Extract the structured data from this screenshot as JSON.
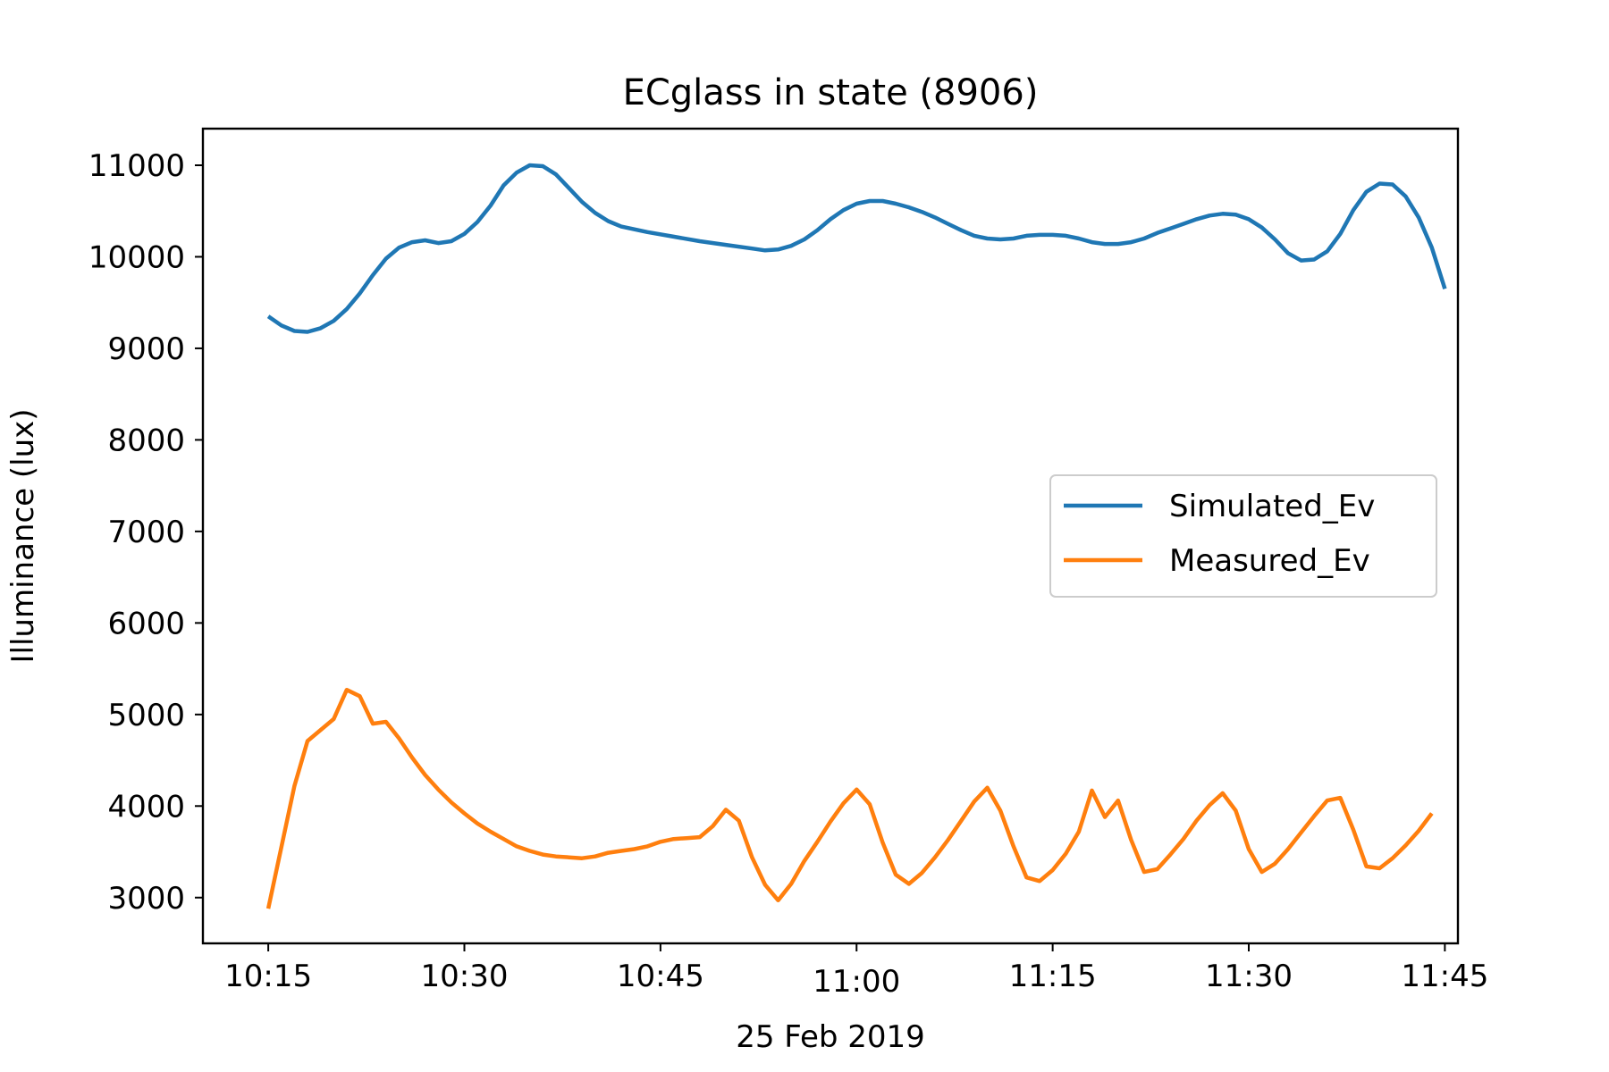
{
  "chart_data": {
    "type": "line",
    "title": "ECglass in state (8906)",
    "xlabel": "25 Feb 2019",
    "ylabel": "Illuminance (lux)",
    "x_ticks": [
      "10:15",
      "10:30",
      "10:45",
      "11:00",
      "11:15",
      "11:30",
      "11:45"
    ],
    "y_ticks": [
      "3000",
      "4000",
      "5000",
      "6000",
      "7000",
      "8000",
      "9000",
      "10000",
      "11000"
    ],
    "ylim": [
      2500,
      11400
    ],
    "xlim": [
      "10:10",
      "11:46"
    ],
    "grid": false,
    "legend_position": "center-right",
    "series": [
      {
        "name": "Simulated_Ev",
        "color": "#1f77b4",
        "points": [
          [
            "10:15",
            9350
          ],
          [
            "10:16",
            9250
          ],
          [
            "10:17",
            9190
          ],
          [
            "10:18",
            9180
          ],
          [
            "10:19",
            9220
          ],
          [
            "10:20",
            9300
          ],
          [
            "10:21",
            9430
          ],
          [
            "10:22",
            9600
          ],
          [
            "10:23",
            9800
          ],
          [
            "10:24",
            9980
          ],
          [
            "10:25",
            10100
          ],
          [
            "10:26",
            10160
          ],
          [
            "10:27",
            10180
          ],
          [
            "10:28",
            10150
          ],
          [
            "10:29",
            10170
          ],
          [
            "10:30",
            10250
          ],
          [
            "10:31",
            10380
          ],
          [
            "10:32",
            10560
          ],
          [
            "10:33",
            10780
          ],
          [
            "10:34",
            10920
          ],
          [
            "10:35",
            11000
          ],
          [
            "10:36",
            10990
          ],
          [
            "10:37",
            10900
          ],
          [
            "10:38",
            10750
          ],
          [
            "10:39",
            10600
          ],
          [
            "10:40",
            10480
          ],
          [
            "10:41",
            10390
          ],
          [
            "10:42",
            10330
          ],
          [
            "10:44",
            10270
          ],
          [
            "10:46",
            10220
          ],
          [
            "10:48",
            10170
          ],
          [
            "10:50",
            10130
          ],
          [
            "10:52",
            10090
          ],
          [
            "10:53",
            10070
          ],
          [
            "10:54",
            10080
          ],
          [
            "10:55",
            10120
          ],
          [
            "10:56",
            10190
          ],
          [
            "10:57",
            10290
          ],
          [
            "10:58",
            10410
          ],
          [
            "10:59",
            10510
          ],
          [
            "11:00",
            10580
          ],
          [
            "11:01",
            10610
          ],
          [
            "11:02",
            10610
          ],
          [
            "11:03",
            10580
          ],
          [
            "11:04",
            10540
          ],
          [
            "11:05",
            10490
          ],
          [
            "11:06",
            10430
          ],
          [
            "11:07",
            10360
          ],
          [
            "11:08",
            10290
          ],
          [
            "11:09",
            10230
          ],
          [
            "11:10",
            10200
          ],
          [
            "11:11",
            10190
          ],
          [
            "11:12",
            10200
          ],
          [
            "11:13",
            10230
          ],
          [
            "11:14",
            10240
          ],
          [
            "11:15",
            10240
          ],
          [
            "11:16",
            10230
          ],
          [
            "11:17",
            10200
          ],
          [
            "11:18",
            10160
          ],
          [
            "11:19",
            10140
          ],
          [
            "11:20",
            10140
          ],
          [
            "11:21",
            10160
          ],
          [
            "11:22",
            10200
          ],
          [
            "11:23",
            10260
          ],
          [
            "11:24",
            10310
          ],
          [
            "11:25",
            10360
          ],
          [
            "11:26",
            10410
          ],
          [
            "11:27",
            10450
          ],
          [
            "11:28",
            10470
          ],
          [
            "11:29",
            10460
          ],
          [
            "11:30",
            10410
          ],
          [
            "11:31",
            10320
          ],
          [
            "11:32",
            10190
          ],
          [
            "11:33",
            10040
          ],
          [
            "11:34",
            9960
          ],
          [
            "11:35",
            9970
          ],
          [
            "11:36",
            10060
          ],
          [
            "11:37",
            10250
          ],
          [
            "11:38",
            10510
          ],
          [
            "11:39",
            10710
          ],
          [
            "11:40",
            10800
          ],
          [
            "11:41",
            10790
          ],
          [
            "11:42",
            10660
          ],
          [
            "11:43",
            10430
          ],
          [
            "11:44",
            10100
          ],
          [
            "11:45",
            9650
          ]
        ]
      },
      {
        "name": "Measured_Ev",
        "color": "#ff7f0e",
        "points": [
          [
            "10:15",
            2880
          ],
          [
            "10:17",
            4220
          ],
          [
            "10:18",
            4710
          ],
          [
            "10:20",
            4950
          ],
          [
            "10:21",
            5270
          ],
          [
            "10:22",
            5200
          ],
          [
            "10:23",
            4900
          ],
          [
            "10:24",
            4920
          ],
          [
            "10:25",
            4740
          ],
          [
            "10:26",
            4530
          ],
          [
            "10:27",
            4340
          ],
          [
            "10:28",
            4180
          ],
          [
            "10:29",
            4040
          ],
          [
            "10:30",
            3920
          ],
          [
            "10:31",
            3810
          ],
          [
            "10:32",
            3720
          ],
          [
            "10:33",
            3640
          ],
          [
            "10:34",
            3560
          ],
          [
            "10:35",
            3510
          ],
          [
            "10:36",
            3470
          ],
          [
            "10:37",
            3450
          ],
          [
            "10:38",
            3440
          ],
          [
            "10:39",
            3430
          ],
          [
            "10:40",
            3450
          ],
          [
            "10:41",
            3490
          ],
          [
            "10:42",
            3510
          ],
          [
            "10:43",
            3530
          ],
          [
            "10:44",
            3560
          ],
          [
            "10:45",
            3610
          ],
          [
            "10:46",
            3640
          ],
          [
            "10:47",
            3650
          ],
          [
            "10:48",
            3660
          ],
          [
            "10:49",
            3780
          ],
          [
            "10:50",
            3960
          ],
          [
            "10:51",
            3840
          ],
          [
            "10:52",
            3440
          ],
          [
            "10:53",
            3140
          ],
          [
            "10:54",
            2970
          ],
          [
            "10:55",
            3150
          ],
          [
            "10:56",
            3400
          ],
          [
            "10:57",
            3610
          ],
          [
            "10:58",
            3830
          ],
          [
            "10:59",
            4030
          ],
          [
            "11:00",
            4180
          ],
          [
            "11:01",
            4020
          ],
          [
            "11:02",
            3600
          ],
          [
            "11:03",
            3250
          ],
          [
            "11:04",
            3150
          ],
          [
            "11:05",
            3270
          ],
          [
            "11:06",
            3440
          ],
          [
            "11:07",
            3630
          ],
          [
            "11:08",
            3840
          ],
          [
            "11:09",
            4050
          ],
          [
            "11:10",
            4200
          ],
          [
            "11:11",
            3950
          ],
          [
            "11:12",
            3560
          ],
          [
            "11:13",
            3220
          ],
          [
            "11:14",
            3180
          ],
          [
            "11:15",
            3300
          ],
          [
            "11:16",
            3480
          ],
          [
            "11:17",
            3720
          ],
          [
            "11:18",
            4170
          ],
          [
            "11:19",
            3880
          ],
          [
            "11:20",
            4060
          ],
          [
            "11:21",
            3630
          ],
          [
            "11:22",
            3280
          ],
          [
            "11:23",
            3310
          ],
          [
            "11:24",
            3470
          ],
          [
            "11:25",
            3640
          ],
          [
            "11:26",
            3840
          ],
          [
            "11:27",
            4010
          ],
          [
            "11:28",
            4140
          ],
          [
            "11:29",
            3950
          ],
          [
            "11:30",
            3530
          ],
          [
            "11:31",
            3280
          ],
          [
            "11:32",
            3370
          ],
          [
            "11:33",
            3530
          ],
          [
            "11:34",
            3710
          ],
          [
            "11:35",
            3890
          ],
          [
            "11:36",
            4060
          ],
          [
            "11:37",
            4090
          ],
          [
            "11:38",
            3740
          ],
          [
            "11:39",
            3340
          ],
          [
            "11:40",
            3320
          ],
          [
            "11:41",
            3430
          ],
          [
            "11:42",
            3570
          ],
          [
            "11:43",
            3730
          ],
          [
            "11:44",
            3920
          ]
        ]
      }
    ]
  }
}
